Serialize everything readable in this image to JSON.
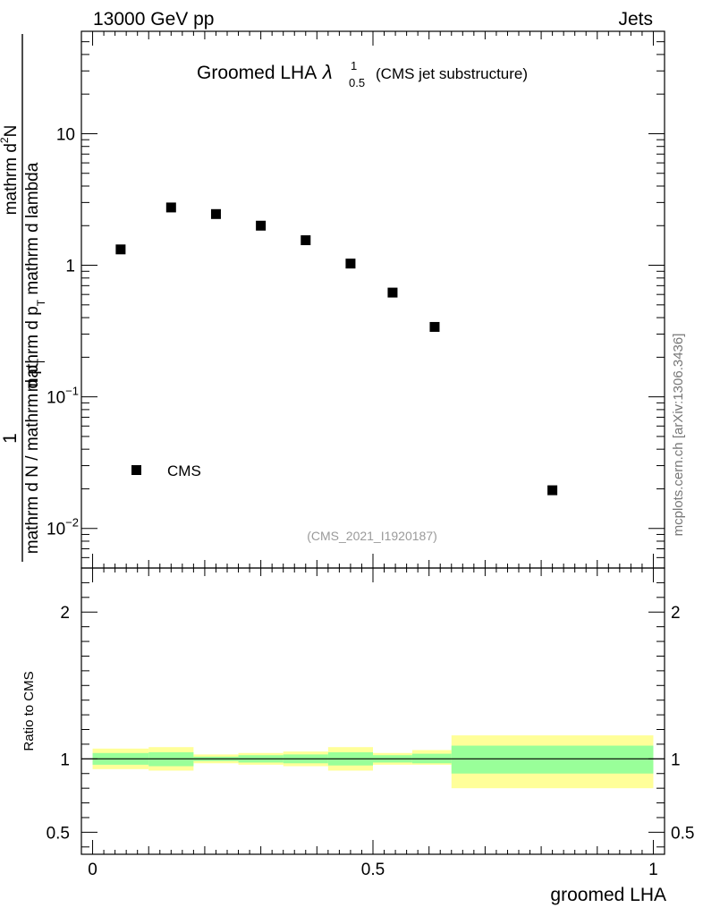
{
  "header": {
    "left": "13000 GeV pp",
    "right": "Jets"
  },
  "side_label": "mcplots.cern.ch [arXiv:1306.3436]",
  "chart_data": [
    {
      "type": "scatter",
      "title": "Groomed LHA",
      "title_symbol": "λ",
      "title_superscript": "1",
      "title_subscript": "0.5",
      "title_suffix": "(CMS jet substructure)",
      "ylabel": {
        "numerator_one": "1",
        "numerator_main": "mathrm d",
        "numerator_n": "2",
        "numerator_end": "N",
        "denominator": "mathrm d N / mathrm d p",
        "denominator_sub": "T",
        "denominator_mid": "mathrm d p",
        "denominator_sub2": "T",
        "denominator_end": " mathrm d lambda"
      },
      "yscale": "log",
      "ylim": [
        0.005,
        60
      ],
      "xlim": [
        -0.02,
        1.02
      ],
      "yticks": [
        {
          "value": 10,
          "base": "10",
          "exp": ""
        },
        {
          "value": 1,
          "base": "1",
          "exp": ""
        },
        {
          "value": 0.1,
          "base": "10",
          "exp": "−1"
        },
        {
          "value": 0.01,
          "base": "10",
          "exp": "−2"
        }
      ],
      "series": [
        {
          "name": "CMS",
          "marker": "square",
          "color": "#000000",
          "x": [
            0.05,
            0.14,
            0.22,
            0.3,
            0.38,
            0.46,
            0.535,
            0.61,
            0.82
          ],
          "y": [
            1.32,
            2.75,
            2.45,
            2.0,
            1.55,
            1.03,
            0.62,
            0.34,
            0.0195
          ]
        }
      ],
      "legend": {
        "label": "CMS",
        "placement": "lower-left"
      },
      "watermark": "(CMS_2021_I1920187)"
    },
    {
      "type": "area",
      "ylabel": "Ratio to CMS",
      "xlabel": "groomed LHA",
      "xlim": [
        -0.02,
        1.02
      ],
      "ylim": [
        0.35,
        2.3
      ],
      "xticks": [
        {
          "value": 0,
          "label": "0"
        },
        {
          "value": 0.5,
          "label": "0.5"
        },
        {
          "value": 1,
          "label": "1"
        }
      ],
      "yticks": [
        {
          "value": 2,
          "label": "2"
        },
        {
          "value": 1,
          "label": "1"
        },
        {
          "value": 0.5,
          "label": "0.5"
        }
      ],
      "reference_line": 1,
      "bands": {
        "bin_edges": [
          0.0,
          0.1,
          0.18,
          0.26,
          0.34,
          0.42,
          0.5,
          0.57,
          0.64,
          1.0
        ],
        "outer": {
          "color": "#ffff99",
          "low": [
            0.93,
            0.92,
            0.97,
            0.96,
            0.95,
            0.92,
            0.96,
            0.96,
            0.8
          ],
          "high": [
            1.07,
            1.08,
            1.03,
            1.04,
            1.05,
            1.08,
            1.04,
            1.06,
            1.16
          ]
        },
        "inner": {
          "color": "#99ff99",
          "low": [
            0.96,
            0.95,
            0.985,
            0.975,
            0.97,
            0.955,
            0.975,
            0.97,
            0.9
          ],
          "high": [
            1.04,
            1.045,
            1.015,
            1.025,
            1.03,
            1.045,
            1.025,
            1.035,
            1.09
          ]
        }
      }
    }
  ]
}
